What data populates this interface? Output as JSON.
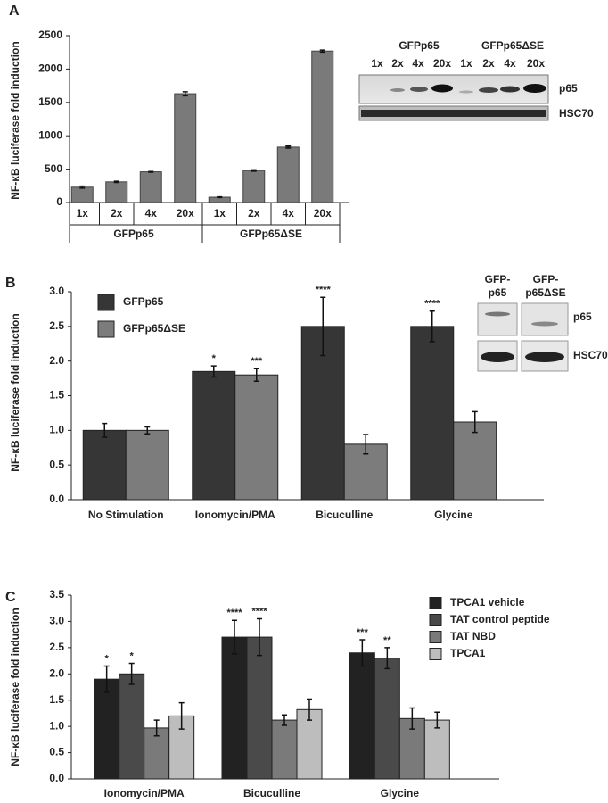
{
  "panel_labels": [
    "A",
    "B",
    "C"
  ],
  "chart_data": [
    {
      "type": "bar",
      "ylabel": "NF-κB luciferase fold  induction",
      "categories": [
        "1x",
        "2x",
        "4x",
        "20x",
        "1x",
        "2x",
        "4x",
        "20x"
      ],
      "groups": [
        "GFPp65",
        "GFPp65ΔSE"
      ],
      "values": [
        230,
        310,
        460,
        1630,
        80,
        480,
        830,
        2270
      ],
      "errors": [
        15,
        10,
        5,
        30,
        5,
        10,
        15,
        15
      ],
      "color": "#7a7a7a",
      "ylim": [
        0,
        2500
      ],
      "yticks": [
        0,
        500,
        1000,
        1500,
        2000,
        2500
      ]
    },
    {
      "type": "grouped-bar",
      "ylabel": "NF-κB luciferase fold  induction",
      "categories": [
        "No Stimulation",
        "Ionomycin/PMA",
        "Bicuculline",
        "Glycine"
      ],
      "series": [
        {
          "name": "GFPp65",
          "color": "#363636",
          "values": [
            1.0,
            1.85,
            2.5,
            2.5
          ],
          "errors": [
            0.1,
            0.08,
            0.42,
            0.22
          ],
          "significance": [
            null,
            "*",
            "****",
            "****"
          ]
        },
        {
          "name": "GFPp65ΔSE",
          "color": "#7c7c7c",
          "values": [
            1.0,
            1.8,
            0.8,
            1.12
          ],
          "errors": [
            0.05,
            0.09,
            0.14,
            0.15
          ],
          "significance": [
            null,
            "***",
            null,
            null
          ]
        }
      ],
      "legend": "upper left",
      "ylim": [
        0,
        3
      ],
      "yticks": [
        {
          "value": 0,
          "label": "0.0"
        },
        {
          "value": 0.5,
          "label": "0.5"
        },
        {
          "value": 1,
          "label": "1.0"
        },
        {
          "value": 1.5,
          "label": "1.5"
        },
        {
          "value": 2,
          "label": "2.0"
        },
        {
          "value": 2.5,
          "label": "2.5"
        },
        {
          "value": 3,
          "label": "3.0"
        }
      ]
    },
    {
      "type": "grouped-bar",
      "ylabel": "NF-κB luciferase fold  induction",
      "categories": [
        "Ionomycin/PMA",
        "Bicuculline",
        "Glycine"
      ],
      "series": [
        {
          "name": "TPCA1 vehicle",
          "color": "#222222",
          "values": [
            1.9,
            2.7,
            2.4
          ],
          "errors": [
            0.25,
            0.32,
            0.25
          ],
          "significance": [
            "*",
            "****",
            "***"
          ]
        },
        {
          "name": "TAT control peptide",
          "color": "#4a4a4a",
          "values": [
            2.0,
            2.7,
            2.3
          ],
          "errors": [
            0.2,
            0.35,
            0.2
          ],
          "significance": [
            "*",
            "****",
            "**"
          ]
        },
        {
          "name": "TAT NBD",
          "color": "#7a7a7a",
          "values": [
            0.97,
            1.12,
            1.15
          ],
          "errors": [
            0.15,
            0.1,
            0.2
          ],
          "significance": [
            null,
            null,
            null
          ]
        },
        {
          "name": "TPCA1",
          "color": "#bdbdbd",
          "values": [
            1.2,
            1.32,
            1.12
          ],
          "errors": [
            0.25,
            0.2,
            0.15
          ],
          "significance": [
            null,
            null,
            null
          ]
        }
      ],
      "legend": "upper right",
      "ylim": [
        0,
        3.5
      ],
      "yticks": [
        {
          "value": 0,
          "label": "0.0"
        },
        {
          "value": 0.5,
          "label": "0.5"
        },
        {
          "value": 1,
          "label": "1.0"
        },
        {
          "value": 1.5,
          "label": "1.5"
        },
        {
          "value": 2,
          "label": "2.0"
        },
        {
          "value": 2.5,
          "label": "2.5"
        },
        {
          "value": 3,
          "label": "3.0"
        },
        {
          "value": 3.5,
          "label": "3.5"
        }
      ]
    }
  ],
  "blots": [
    {
      "groups": [
        "GFPp65",
        "GFPp65ΔSE"
      ],
      "lanes": [
        "1x",
        "2x",
        "4x",
        "20x",
        "1x",
        "2x",
        "4x",
        "20x"
      ],
      "bands": [
        "p65",
        "HSC70"
      ]
    },
    {
      "groups": [
        [
          "GFP-",
          "p65"
        ],
        [
          "GFP-",
          "p65ΔSE"
        ]
      ],
      "bands": [
        "p65",
        "HSC70"
      ]
    }
  ]
}
